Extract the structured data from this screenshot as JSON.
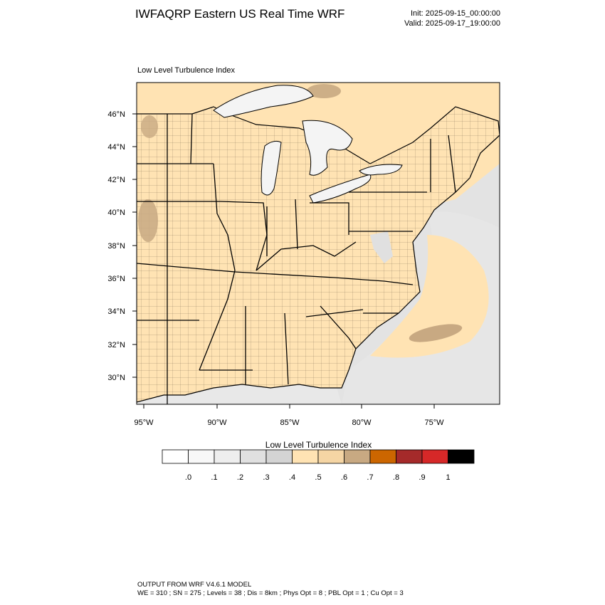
{
  "header": {
    "title": "IWFAQRP Eastern US Real Time WRF",
    "init": "Init: 2025-09-15_00:00:00",
    "valid": "Valid: 2025-09-17_19:00:00"
  },
  "map": {
    "subtitle": "Low Level Turbulence Index",
    "lat_labels": [
      "46°N",
      "44°N",
      "42°N",
      "40°N",
      "38°N",
      "36°N",
      "34°N",
      "32°N",
      "30°N"
    ],
    "lon_labels": [
      "95°W",
      "90°W",
      "85°W",
      "80°W",
      "75°W"
    ],
    "land_color": "#ffe3b3",
    "water_color": "#f4f4f4"
  },
  "colorbar": {
    "title": "Low Level Turbulence Index",
    "tick_labels": [
      ".0",
      ".1",
      ".2",
      ".3",
      ".4",
      ".5",
      ".6",
      ".7",
      ".8",
      ".9",
      "1"
    ],
    "colors": [
      "#ffffff",
      "#f8f8f8",
      "#eeeeee",
      "#e0e0e0",
      "#d4d4d4",
      "#ffe3b3",
      "#f5d5a4",
      "#c8a982",
      "#cc6600",
      "#a52a2a",
      "#d62828",
      "#000000"
    ]
  },
  "footer": {
    "line1": "OUTPUT FROM WRF V4.6.1 MODEL",
    "line2": "WE = 310 ; SN = 275 ; Levels = 38 ; Dis = 8km ; Phys Opt = 8 ; PBL Opt = 1 ; Cu Opt = 3"
  }
}
